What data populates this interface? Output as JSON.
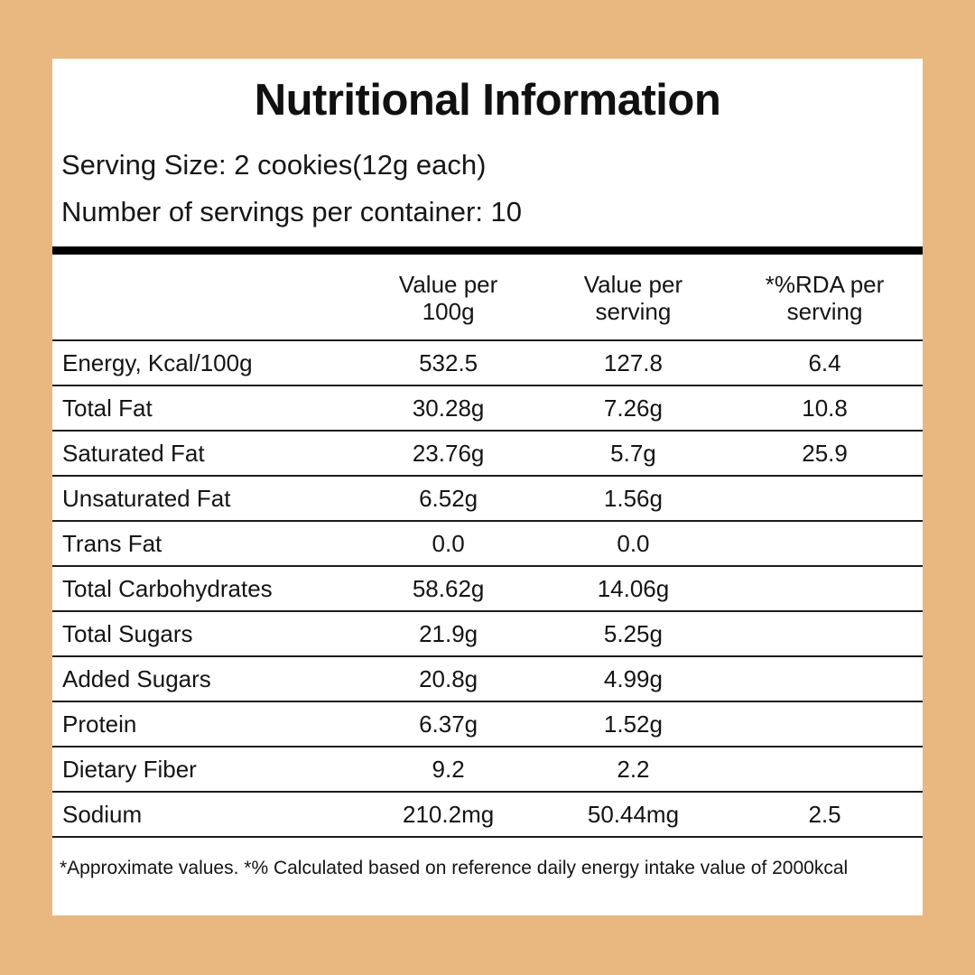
{
  "theme": {
    "background_color": "#E9B880",
    "card_color": "#FFFFFF",
    "text_color": "#141414",
    "divider_color": "#000000"
  },
  "header": {
    "title": "Nutritional Information",
    "serving_size": "Serving Size: 2 cookies(12g each)",
    "servings_per_container": "Number of servings per container: 10"
  },
  "table": {
    "columns": [
      {
        "line1": "",
        "line2": ""
      },
      {
        "line1": "Value per",
        "line2": "100g"
      },
      {
        "line1": "Value per",
        "line2": "serving"
      },
      {
        "line1": "*%RDA per",
        "line2": "serving"
      }
    ],
    "rows": [
      {
        "label": "Energy, Kcal/100g",
        "per_100g": "532.5",
        "per_serving": "127.8",
        "rda": "6.4"
      },
      {
        "label": "Total Fat",
        "per_100g": "30.28g",
        "per_serving": "7.26g",
        "rda": "10.8"
      },
      {
        "label": "Saturated Fat",
        "per_100g": "23.76g",
        "per_serving": "5.7g",
        "rda": "25.9"
      },
      {
        "label": "Unsaturated Fat",
        "per_100g": "6.52g",
        "per_serving": "1.56g",
        "rda": ""
      },
      {
        "label": "Trans Fat",
        "per_100g": "0.0",
        "per_serving": "0.0",
        "rda": ""
      },
      {
        "label": "Total Carbohydrates",
        "per_100g": "58.62g",
        "per_serving": "14.06g",
        "rda": ""
      },
      {
        "label": "Total Sugars",
        "per_100g": "21.9g",
        "per_serving": "5.25g",
        "rda": ""
      },
      {
        "label": "Added Sugars",
        "per_100g": "20.8g",
        "per_serving": "4.99g",
        "rda": ""
      },
      {
        "label": "Protein",
        "per_100g": "6.37g",
        "per_serving": "1.52g",
        "rda": ""
      },
      {
        "label": "Dietary Fiber",
        "per_100g": "9.2",
        "per_serving": "2.2",
        "rda": ""
      },
      {
        "label": "Sodium",
        "per_100g": "210.2mg",
        "per_serving": "50.44mg",
        "rda": "2.5"
      }
    ]
  },
  "footnote": "*Approximate values. *% Calculated based on reference daily energy intake value of 2000kcal"
}
